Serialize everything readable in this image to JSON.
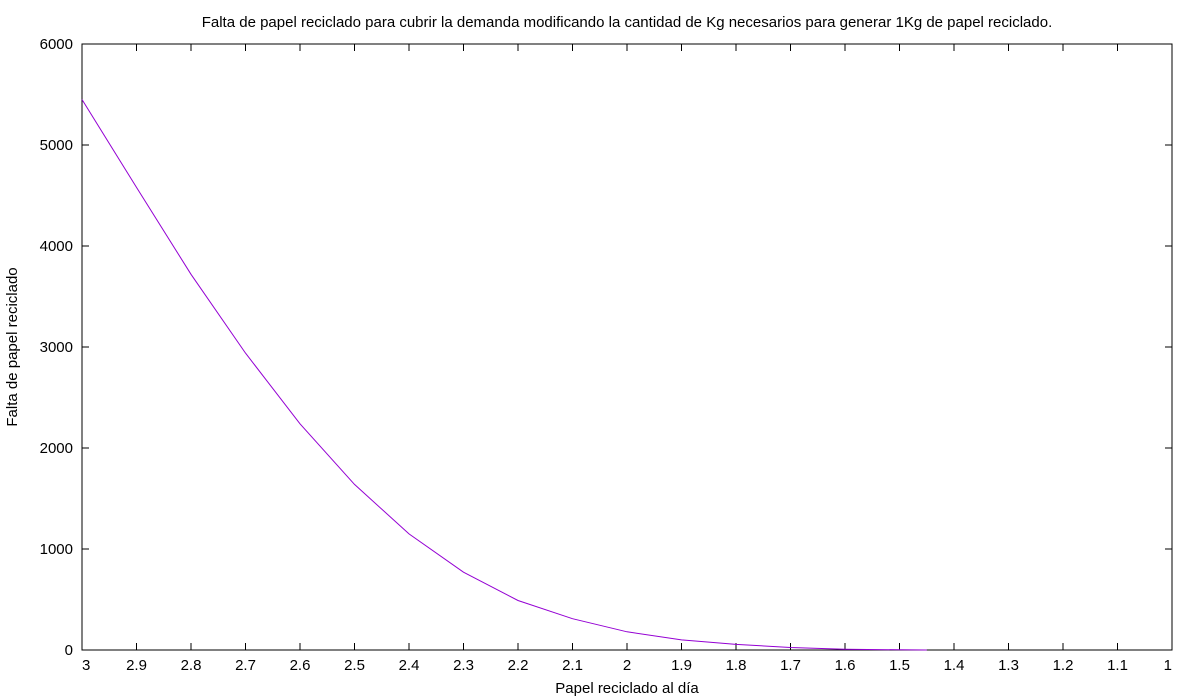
{
  "chart_data": {
    "type": "line",
    "title": "Falta de papel reciclado para cubrir la demanda modificando la cantidad de Kg necesarios para generar 1Kg de papel reciclado.",
    "xlabel": "Papel reciclado al día",
    "ylabel": "Falta de papel reciclado",
    "xlim": [
      3,
      1
    ],
    "ylim": [
      0,
      6000
    ],
    "x_reversed": true,
    "grid": false,
    "legend": "none",
    "xticks": [
      "3",
      "2.9",
      "2.8",
      "2.7",
      "2.6",
      "2.5",
      "2.4",
      "2.3",
      "2.2",
      "2.1",
      "2",
      "1.9",
      "1.8",
      "1.7",
      "1.6",
      "1.5",
      "1.4",
      "1.3",
      "1.2",
      "1.1",
      "1"
    ],
    "yticks": [
      "0",
      "1000",
      "2000",
      "3000",
      "4000",
      "5000",
      "6000"
    ],
    "series": [
      {
        "color": "#9400d3",
        "x": [
          3.0,
          2.9,
          2.8,
          2.7,
          2.6,
          2.5,
          2.4,
          2.3,
          2.2,
          2.1,
          2.0,
          1.9,
          1.8,
          1.7,
          1.6,
          1.5,
          1.45
        ],
        "y": [
          5450,
          4580,
          3720,
          2940,
          2240,
          1640,
          1150,
          770,
          490,
          310,
          180,
          100,
          55,
          25,
          8,
          2,
          0
        ]
      }
    ]
  }
}
